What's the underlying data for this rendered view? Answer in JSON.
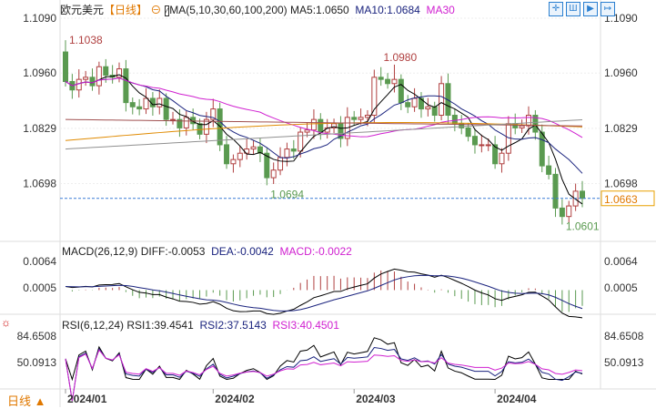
{
  "header": {
    "symbol": "欧元美元",
    "period": "【日线】",
    "ma_params": "MA(5,10,30,60,100,200)",
    "ma5": "MA5:1.0650",
    "ma10": "MA10:1.0684",
    "ma30": "MA30"
  },
  "toolbar": {
    "icons": [
      "crosshair-icon",
      "indicator-icon",
      "play-icon",
      "exit-icon"
    ]
  },
  "macd_header": {
    "params": "MACD(26,12,9)",
    "diff": "DIFF:-0.0053",
    "dea": "DEA:-0.0042",
    "macd": "MACD:-0.0022"
  },
  "rsi_header": {
    "params": "RSI(6,12,24)",
    "rsi1": "RSI1:39.4541",
    "rsi2": "RSI2:37.5143",
    "rsi3": "RSI3:40.4501"
  },
  "bottom": {
    "period_button": "日线 ▲"
  },
  "colors": {
    "up": "#b04040",
    "down": "#5a9a50",
    "ma5": "#000000",
    "ma10": "#1a237e",
    "ma30": "#d020d0",
    "ma60": "#e08a00",
    "ma100": "#a05050",
    "ma200": "#909090",
    "current": "#e8a000"
  },
  "chart_data": {
    "type": "candlestick",
    "price_ticks": [
      "1.1090",
      "1.0960",
      "1.0829",
      "1.0698"
    ],
    "macd_ticks": [
      "0.0064",
      "0.0005"
    ],
    "rsi_ticks": [
      "84.6508",
      "50.0913"
    ],
    "x_ticks": [
      "2024/01",
      "2024/02",
      "2024/03",
      "2024/04"
    ],
    "annotations": {
      "high_start": "1.1038",
      "high_mar": "1.0980",
      "low_feb": "1.0694",
      "low_apr": "1.0601"
    },
    "current_price": "1.0663",
    "closes": [
      1.094,
      1.092,
      1.0945,
      1.095,
      1.093,
      1.0975,
      1.0955,
      1.095,
      1.097,
      1.089,
      1.088,
      1.0875,
      1.09,
      1.088,
      1.09,
      1.085,
      1.085,
      1.083,
      1.0855,
      1.084,
      1.0815,
      1.085,
      1.0875,
      1.079,
      1.0745,
      1.0755,
      1.077,
      1.078,
      1.0785,
      1.077,
      1.0712,
      1.073,
      1.076,
      1.078,
      1.0775,
      1.082,
      1.0825,
      1.085,
      1.082,
      1.083,
      1.084,
      1.0805,
      1.0855,
      1.085,
      1.0855,
      1.086,
      1.095,
      1.0945,
      1.0935,
      1.0945,
      1.089,
      1.088,
      1.09,
      1.0875,
      1.088,
      1.086,
      1.0935,
      1.086,
      1.084,
      1.083,
      1.081,
      1.079,
      1.079,
      1.079,
      1.0745,
      1.077,
      1.084,
      1.083,
      1.0835,
      1.086,
      1.082,
      1.074,
      1.072,
      1.064,
      1.062,
      1.0645,
      1.068,
      1.0663
    ]
  }
}
